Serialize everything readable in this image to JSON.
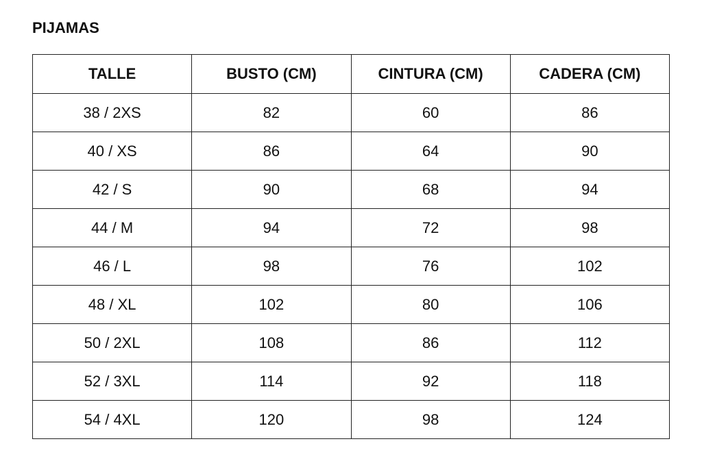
{
  "title": "PIJAMAS",
  "table": {
    "headers": [
      "TALLE",
      "BUSTO (CM)",
      "CINTURA (CM)",
      "CADERA (CM)"
    ],
    "rows": [
      [
        "38 / 2XS",
        "82",
        "60",
        "86"
      ],
      [
        "40 / XS",
        "86",
        "64",
        "90"
      ],
      [
        "42 / S",
        "90",
        "68",
        "94"
      ],
      [
        "44 / M",
        "94",
        "72",
        "98"
      ],
      [
        "46 / L",
        "98",
        "76",
        "102"
      ],
      [
        "48 / XL",
        "102",
        "80",
        "106"
      ],
      [
        "50 / 2XL",
        "108",
        "86",
        "112"
      ],
      [
        "52 / 3XL",
        "114",
        "92",
        "118"
      ],
      [
        "54 / 4XL",
        "120",
        "98",
        "124"
      ]
    ]
  }
}
